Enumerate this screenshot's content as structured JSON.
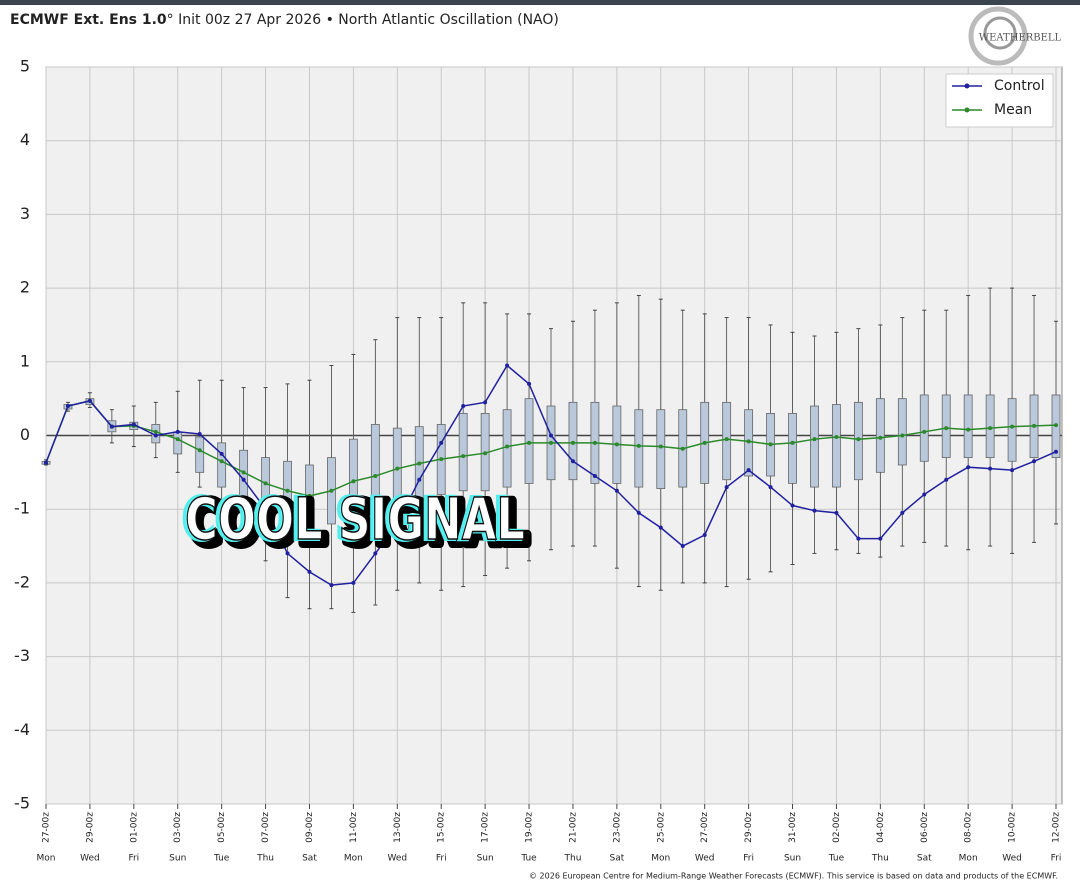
{
  "chart_data": {
    "type": "box-line",
    "model": "ECMWF Ext. Ens 1.0",
    "title": "° Init 00z 27 Apr 2026 • North Atlantic Oscillation (NAO)",
    "logo": "WEATHERBELL",
    "annotation": "COOL SIGNAL",
    "footer": "© 2026 European Centre for Medium-Range Weather Forecasts (ECMWF). This service is based on data and products of the ECMWF.",
    "categories": [
      "27-00z",
      null,
      "29-00z",
      null,
      "01-00z",
      null,
      "03-00z",
      null,
      "05-00z",
      null,
      "07-00z",
      null,
      "09-00z",
      null,
      "11-00z",
      null,
      "13-00z",
      null,
      "15-00z",
      null,
      "17-00z",
      null,
      "19-00z",
      null,
      "21-00z",
      null,
      "23-00z",
      null,
      "25-00z",
      null,
      "27-00z",
      null,
      "29-00z",
      null,
      "31-00z",
      null,
      "02-00z",
      null,
      "04-00z",
      null,
      "06-00z",
      null,
      "08-00z",
      null,
      "10-00z",
      null,
      "12-00z"
    ],
    "weekdays": [
      "Mon",
      null,
      "Wed",
      null,
      "Fri",
      null,
      "Sun",
      null,
      "Tue",
      null,
      "Thu",
      null,
      "Sat",
      null,
      "Mon",
      null,
      "Wed",
      null,
      "Fri",
      null,
      "Sun",
      null,
      "Tue",
      null,
      "Thu",
      null,
      "Sat",
      null,
      "Mon",
      null,
      "Wed",
      null,
      "Fri",
      null,
      "Sun",
      null,
      "Tue",
      null,
      "Thu",
      null,
      "Sat",
      null,
      "Mon",
      null,
      "Wed",
      null,
      "Fri"
    ],
    "series": [
      {
        "name": "Control",
        "color": "#2020a0",
        "values": [
          -0.37,
          0.4,
          0.47,
          0.12,
          0.15,
          0.0,
          0.05,
          0.02,
          -0.25,
          -0.6,
          -1.0,
          -1.6,
          -1.85,
          -2.03,
          -2.0,
          -1.6,
          -1.2,
          -0.6,
          -0.1,
          0.4,
          0.45,
          0.95,
          0.7,
          0.0,
          -0.35,
          -0.55,
          -0.75,
          -1.05,
          -1.25,
          -1.5,
          -1.35,
          -0.7,
          -0.47,
          -0.7,
          -0.95,
          -1.02,
          -1.05,
          -1.4,
          -1.4,
          -1.05,
          -0.8,
          -0.6,
          -0.43,
          -0.45,
          -0.47,
          -0.35,
          -0.22
        ]
      },
      {
        "name": "Mean",
        "color": "#2a8a2a",
        "values": [
          -0.37,
          0.4,
          0.47,
          0.12,
          0.13,
          0.05,
          -0.05,
          -0.2,
          -0.35,
          -0.5,
          -0.65,
          -0.75,
          -0.82,
          -0.75,
          -0.62,
          -0.55,
          -0.45,
          -0.38,
          -0.32,
          -0.28,
          -0.24,
          -0.15,
          -0.1,
          -0.1,
          -0.1,
          -0.1,
          -0.12,
          -0.14,
          -0.15,
          -0.18,
          -0.1,
          -0.05,
          -0.08,
          -0.12,
          -0.1,
          -0.05,
          -0.02,
          -0.05,
          -0.03,
          0.0,
          0.05,
          0.1,
          0.08,
          0.1,
          0.12,
          0.13,
          0.14
        ]
      }
    ],
    "ensemble": {
      "color": "#b9c8da",
      "min": [
        -0.4,
        0.33,
        0.38,
        -0.1,
        -0.15,
        -0.3,
        -0.5,
        -0.7,
        -1.0,
        -1.4,
        -1.7,
        -2.2,
        -2.35,
        -2.35,
        -2.4,
        -2.3,
        -2.1,
        -2.0,
        -2.1,
        -2.05,
        -1.9,
        -1.8,
        -1.7,
        -1.55,
        -1.5,
        -1.5,
        -1.8,
        -2.05,
        -2.1,
        -2.0,
        -2.0,
        -2.05,
        -1.95,
        -1.85,
        -1.75,
        -1.6,
        -1.55,
        -1.6,
        -1.65,
        -1.5,
        -1.45,
        -1.5,
        -1.55,
        -1.5,
        -1.6,
        -1.45,
        -1.2
      ],
      "q1": [
        -0.39,
        0.36,
        0.42,
        0.05,
        0.08,
        -0.1,
        -0.25,
        -0.5,
        -0.7,
        -0.85,
        -1.0,
        -1.1,
        -1.2,
        -1.2,
        -1.05,
        -1.0,
        -0.9,
        -0.85,
        -0.8,
        -0.75,
        -0.75,
        -0.7,
        -0.65,
        -0.6,
        -0.6,
        -0.65,
        -0.65,
        -0.7,
        -0.72,
        -0.7,
        -0.65,
        -0.6,
        -0.55,
        -0.55,
        -0.65,
        -0.7,
        -0.7,
        -0.6,
        -0.5,
        -0.4,
        -0.35,
        -0.3,
        -0.3,
        -0.3,
        -0.35,
        -0.3,
        -0.3
      ],
      "q3": [
        -0.35,
        0.42,
        0.5,
        0.2,
        0.18,
        0.15,
        0.05,
        -0.02,
        -0.1,
        -0.2,
        -0.3,
        -0.35,
        -0.4,
        -0.3,
        -0.05,
        0.15,
        0.1,
        0.12,
        0.15,
        0.3,
        0.3,
        0.35,
        0.5,
        0.4,
        0.45,
        0.45,
        0.4,
        0.35,
        0.35,
        0.35,
        0.45,
        0.45,
        0.35,
        0.3,
        0.3,
        0.4,
        0.42,
        0.45,
        0.5,
        0.5,
        0.55,
        0.55,
        0.55,
        0.55,
        0.5,
        0.55,
        0.55
      ],
      "max": [
        -0.33,
        0.45,
        0.58,
        0.35,
        0.4,
        0.45,
        0.6,
        0.75,
        0.75,
        0.65,
        0.65,
        0.7,
        0.75,
        0.95,
        1.1,
        1.3,
        1.6,
        1.6,
        1.6,
        1.8,
        1.8,
        1.65,
        1.65,
        1.45,
        1.55,
        1.7,
        1.8,
        1.9,
        1.85,
        1.7,
        1.65,
        1.6,
        1.6,
        1.5,
        1.4,
        1.35,
        1.4,
        1.45,
        1.5,
        1.6,
        1.7,
        1.7,
        1.9,
        2.0,
        2.0,
        1.9,
        1.55
      ]
    },
    "ylim": [
      -5,
      5
    ],
    "yticks": [
      -5,
      -4,
      -3,
      -2,
      -1,
      0,
      1,
      2,
      3,
      4,
      5
    ],
    "grid": true,
    "legend": "upper right"
  }
}
